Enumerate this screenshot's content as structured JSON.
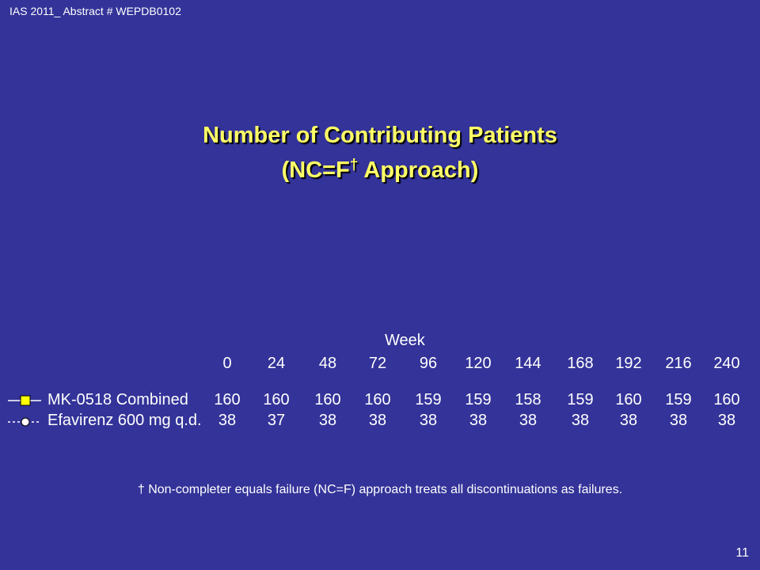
{
  "header_note": "IAS 2011_ Abstract # WEPDB0102",
  "title_line1": "Number of Contributing Patients",
  "title_line2_main": "(NC=F",
  "title_line2_sup": "†",
  "title_line2_end": " Approach)",
  "week_label": "Week",
  "weeks": [
    "0",
    "24",
    "48",
    "72",
    "96",
    "120",
    "144",
    "168",
    "192",
    "216",
    "240"
  ],
  "rows": [
    {
      "label": "MK-0518 Combined",
      "marker": "square",
      "marker_color": "#ffff00",
      "values": [
        "160",
        "160",
        "160",
        "160",
        "159",
        "159",
        "158",
        "159",
        "160",
        "159",
        "160"
      ]
    },
    {
      "label": "Efavirenz 600 mg q.d.",
      "marker": "circle",
      "marker_color": "#ffffff",
      "values": [
        "38",
        "37",
        "38",
        "38",
        "38",
        "38",
        "38",
        "38",
        "38",
        "38",
        "38"
      ]
    }
  ],
  "footnote": "† Non-completer equals failure (NC=F) approach treats all discontinuations as failures.",
  "slide_number": "11",
  "colors": {
    "background": "#333399",
    "title": "#ffff66",
    "text": "#ffffff"
  }
}
